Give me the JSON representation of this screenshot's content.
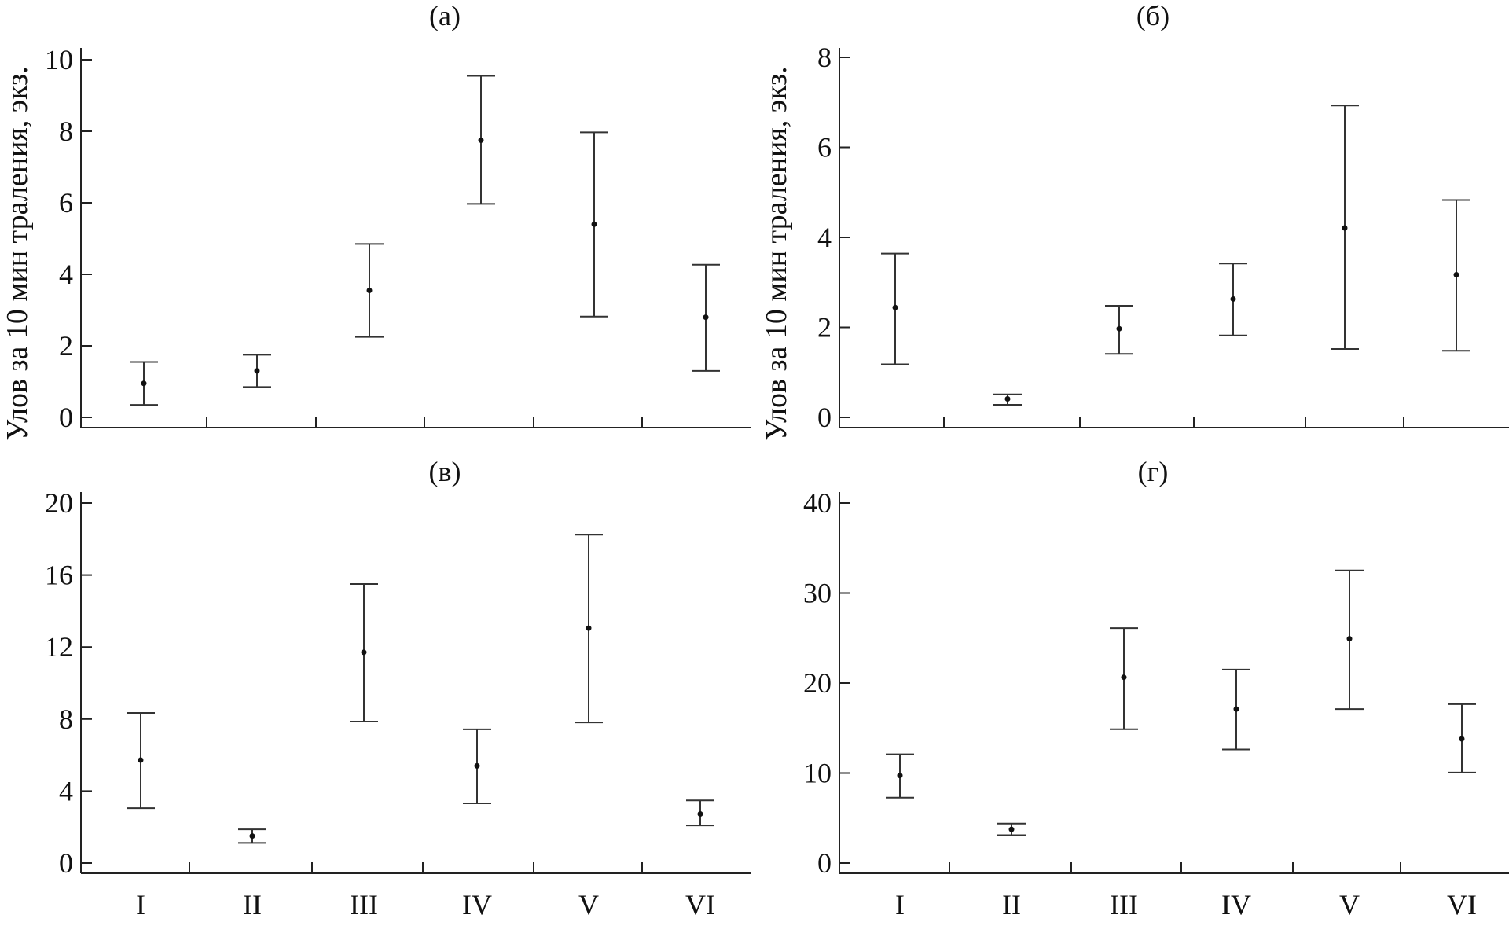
{
  "ylabel": "Улов за 10 мин траления, экз.",
  "chart_data": [
    {
      "type": "scatter",
      "title": "(а)",
      "ylabel": "Улов за 10 мин траления, экз.",
      "categories": [
        "I",
        "II",
        "III",
        "IV",
        "V",
        "VI"
      ],
      "show_category_labels": false,
      "ylim": [
        0,
        10
      ],
      "yticks": [
        0,
        2,
        4,
        6,
        8,
        10
      ],
      "mean": [
        0.95,
        1.3,
        3.55,
        7.75,
        5.4,
        2.8
      ],
      "lower": [
        0.35,
        0.85,
        2.25,
        5.97,
        2.82,
        1.3
      ],
      "upper": [
        1.55,
        1.75,
        4.85,
        9.55,
        7.97,
        4.27
      ],
      "grid": false
    },
    {
      "type": "scatter",
      "title": "(б)",
      "ylabel": "Улов за 10 мин траления, экз.",
      "categories": [
        "I",
        "II",
        "III",
        "IV",
        "V",
        "VI"
      ],
      "show_category_labels": false,
      "ylim": [
        0,
        8
      ],
      "yticks": [
        0,
        2,
        4,
        6,
        8
      ],
      "mean": [
        2.44,
        0.41,
        1.97,
        2.63,
        4.21,
        3.17
      ],
      "lower": [
        1.18,
        0.28,
        1.41,
        1.82,
        1.52,
        1.48
      ],
      "upper": [
        3.64,
        0.51,
        2.48,
        3.42,
        6.93,
        4.83
      ],
      "grid": false
    },
    {
      "type": "scatter",
      "title": "(в)",
      "ylabel": "",
      "categories": [
        "I",
        "II",
        "III",
        "IV",
        "V",
        "VI"
      ],
      "show_category_labels": true,
      "ylim": [
        0,
        20
      ],
      "yticks": [
        0,
        4,
        8,
        12,
        16,
        20
      ],
      "mean": [
        5.72,
        1.5,
        11.71,
        5.4,
        13.05,
        2.73
      ],
      "lower": [
        3.05,
        1.12,
        7.86,
        3.32,
        7.81,
        2.09
      ],
      "upper": [
        8.34,
        1.87,
        15.5,
        7.43,
        18.24,
        3.48
      ],
      "grid": false
    },
    {
      "type": "scatter",
      "title": "(г)",
      "ylabel": "",
      "categories": [
        "I",
        "II",
        "III",
        "IV",
        "V",
        "VI"
      ],
      "show_category_labels": true,
      "ylim": [
        0,
        40
      ],
      "yticks": [
        0,
        10,
        20,
        30,
        40
      ],
      "mean": [
        9.73,
        3.74,
        20.64,
        17.11,
        24.92,
        13.8
      ],
      "lower": [
        7.27,
        3.1,
        14.87,
        12.62,
        17.11,
        10.05
      ],
      "upper": [
        12.09,
        4.39,
        26.1,
        21.5,
        32.51,
        17.65
      ],
      "grid": false
    }
  ]
}
